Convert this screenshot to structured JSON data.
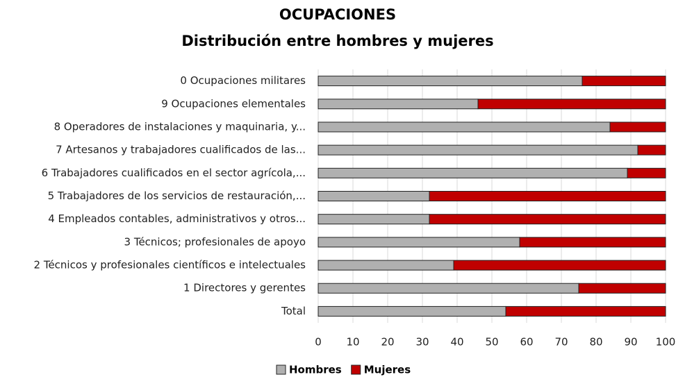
{
  "chart_data": {
    "type": "stacked-barh",
    "title": "OCUPACIONES",
    "subtitle": "Distribución entre hombres y mujeres",
    "categories": [
      "0 Ocupaciones militares",
      "9 Ocupaciones elementales",
      "8 Operadores de instalaciones y maquinaria, y...",
      "7 Artesanos y trabajadores cualificados de las...",
      "6 Trabajadores cualificados en el sector agrícola,...",
      "5 Trabajadores de los servicios de restauración,...",
      "4 Empleados contables, administrativos y otros...",
      "3 Técnicos; profesionales de apoyo",
      "2 Técnicos y profesionales científicos e intelectuales",
      "1 Directores y gerentes",
      "Total"
    ],
    "series": [
      {
        "name": "Hombres",
        "color": "#b0b0b0",
        "values": [
          76,
          46,
          84,
          92,
          89,
          32,
          32,
          58,
          39,
          75,
          54
        ]
      },
      {
        "name": "Mujeres",
        "color": "#c00000",
        "values": [
          24,
          54,
          16,
          8,
          11,
          68,
          68,
          42,
          61,
          25,
          46
        ]
      }
    ],
    "xlim": [
      0,
      100
    ],
    "xticks": [
      0,
      10,
      20,
      30,
      40,
      50,
      60,
      70,
      80,
      90,
      100
    ],
    "grid": true,
    "legend": "bottom"
  }
}
